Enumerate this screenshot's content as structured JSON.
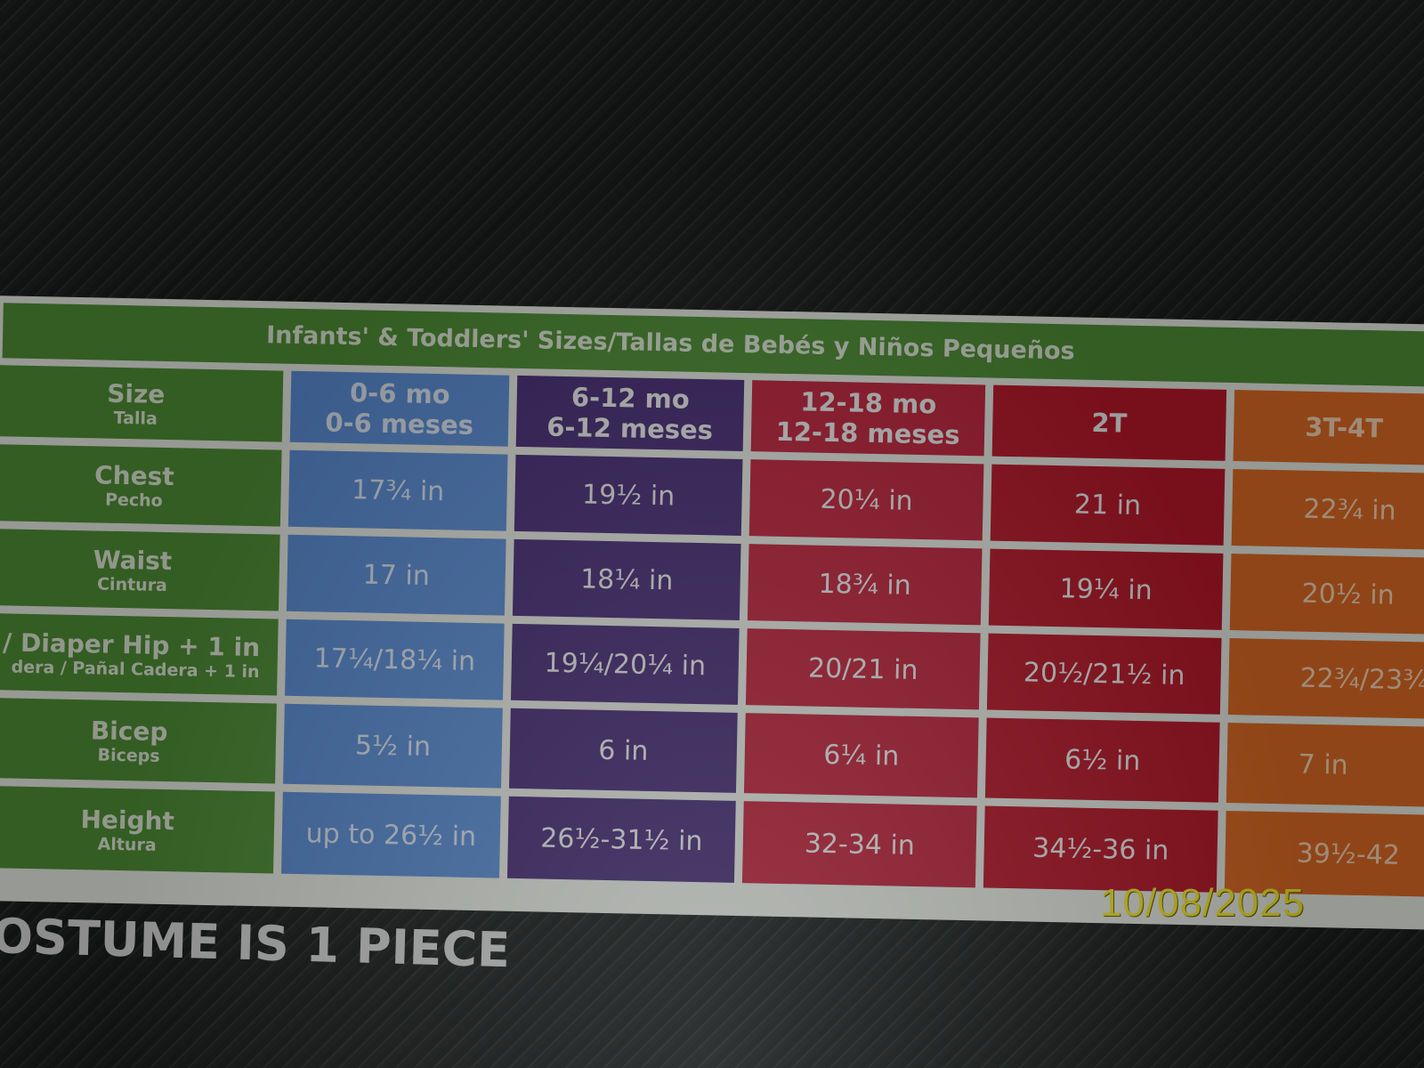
{
  "table": {
    "title": "Infants' & Toddlers' Sizes/Tallas de Bebés y Niños Pequeños",
    "header": {
      "label": "Size",
      "label_es": "Talla",
      "sizes": [
        [
          "0-6 mo",
          "0-6 meses"
        ],
        [
          "6-12 mo",
          "6-12 meses"
        ],
        [
          "12-18 mo",
          "12-18 meses"
        ],
        [
          "2T",
          ""
        ],
        [
          "3T-4T",
          ""
        ]
      ]
    },
    "rows": [
      {
        "label": "Chest",
        "label_es": "Pecho",
        "values": [
          "17¾ in",
          "19½ in",
          "20¼ in",
          "21 in",
          "22¾ in"
        ]
      },
      {
        "label": "Waist",
        "label_es": "Cintura",
        "values": [
          "17 in",
          "18¼  in",
          "18¾ in",
          "19¼  in",
          "20½ in"
        ]
      },
      {
        "label": "ip / Diaper Hip + 1 in",
        "label_es": "dera / Pañal Cadera + 1 in",
        "values": [
          "17¼/18¼  in",
          "19¼/20¼  in",
          "20/21 in",
          "20½/21½ in",
          "22¾/23¾"
        ]
      },
      {
        "label": "Bicep",
        "label_es": "Biceps",
        "values": [
          "5½ in",
          "6 in",
          "6¼  in",
          "6½ in",
          "7 in"
        ]
      },
      {
        "label": "Height",
        "label_es": "Altura",
        "values": [
          "up to 26½ in",
          "26½-31½ in",
          "32-34 in",
          "34½-36 in",
          "39½-42"
        ]
      }
    ],
    "colors": {
      "label": "#4f8f36",
      "col1": "#5b8ed6",
      "col2": "#4a2f78",
      "col3": "#c0243d",
      "col4": "#b8182a",
      "col5": "#dd6a24"
    }
  },
  "footer_text": "OSTUME IS 1 PIECE",
  "date_stamp": "10/08/2025"
}
